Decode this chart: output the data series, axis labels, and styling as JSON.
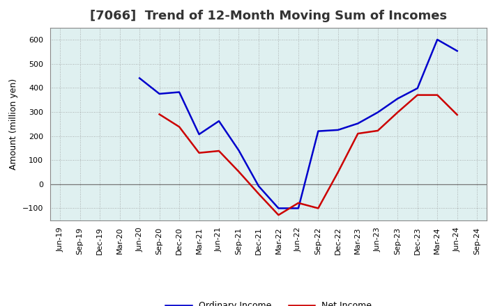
{
  "title": "[7066]  Trend of 12-Month Moving Sum of Incomes",
  "ylabel": "Amount (million yen)",
  "ylim": [
    -150,
    650
  ],
  "yticks": [
    -100,
    0,
    100,
    200,
    300,
    400,
    500,
    600
  ],
  "plot_bg_color": "#dff0f0",
  "fig_bg_color": "#ffffff",
  "grid_color": "#999999",
  "x_labels": [
    "Jun-19",
    "Sep-19",
    "Dec-19",
    "Mar-20",
    "Jun-20",
    "Sep-20",
    "Dec-20",
    "Mar-21",
    "Jun-21",
    "Sep-21",
    "Dec-21",
    "Mar-22",
    "Jun-22",
    "Sep-22",
    "Dec-22",
    "Mar-23",
    "Jun-23",
    "Sep-23",
    "Dec-23",
    "Mar-24",
    "Jun-24",
    "Sep-24"
  ],
  "ordinary_income": [
    null,
    null,
    null,
    null,
    440,
    375,
    382,
    207,
    262,
    140,
    -8,
    -100,
    -100,
    220,
    225,
    252,
    298,
    355,
    398,
    600,
    553,
    null
  ],
  "net_income": [
    null,
    null,
    null,
    null,
    null,
    290,
    238,
    130,
    138,
    52,
    -40,
    -128,
    -78,
    -100,
    50,
    210,
    222,
    298,
    370,
    370,
    288,
    null
  ],
  "ordinary_color": "#0000cc",
  "net_color": "#cc0000",
  "line_width": 1.8,
  "title_fontsize": 13,
  "title_color": "#333333",
  "tick_label_fontsize": 8,
  "ylabel_fontsize": 9,
  "legend_fontsize": 9
}
